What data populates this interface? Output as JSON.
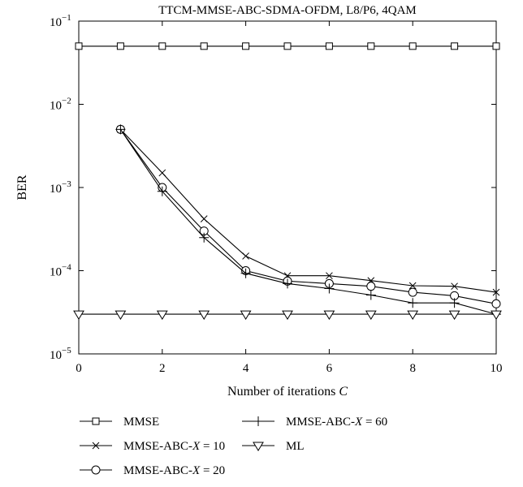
{
  "chart_data": {
    "type": "line",
    "title": "TTCM-MMSE-ABC-SDMA-OFDM, L8/P6, 4QAM",
    "xlabel": "Number of iterations",
    "xlabel_var": "C",
    "ylabel": "BER",
    "xlim": [
      0,
      10
    ],
    "ylim": [
      1e-05,
      0.1
    ],
    "yscale": "log",
    "xticks": [
      "0",
      "2",
      "4",
      "6",
      "8",
      "10"
    ],
    "yticks": [
      {
        "base": "10",
        "exp": "−1",
        "value": 0.1
      },
      {
        "base": "10",
        "exp": "−2",
        "value": 0.01
      },
      {
        "base": "10",
        "exp": "−3",
        "value": 0.001
      },
      {
        "base": "10",
        "exp": "−4",
        "value": 0.0001
      },
      {
        "base": "10",
        "exp": "−5",
        "value": 1e-05
      }
    ],
    "grid": false,
    "legend_position": "bottom",
    "series": [
      {
        "name": "MMSE",
        "label_parts": [
          "MMSE"
        ],
        "marker": "square",
        "x": [
          0,
          1,
          2,
          3,
          4,
          5,
          6,
          7,
          8,
          9,
          10
        ],
        "y": [
          0.05,
          0.05,
          0.05,
          0.05,
          0.05,
          0.05,
          0.05,
          0.05,
          0.05,
          0.05,
          0.05
        ]
      },
      {
        "name": "MMSE-ABC-X = 10",
        "label_parts": [
          "MMSE-ABC-",
          "X",
          " = 10"
        ],
        "marker": "x",
        "x": [
          1,
          2,
          3,
          4,
          5,
          6,
          7,
          8,
          9,
          10
        ],
        "y": [
          0.005,
          0.0015,
          0.00042,
          0.00015,
          8.7e-05,
          8.7e-05,
          7.6e-05,
          6.6e-05,
          6.5e-05,
          5.5e-05
        ]
      },
      {
        "name": "MMSE-ABC-X = 20",
        "label_parts": [
          "MMSE-ABC-",
          "X",
          " = 20"
        ],
        "marker": "circle",
        "x": [
          1,
          2,
          3,
          4,
          5,
          6,
          7,
          8,
          9,
          10
        ],
        "y": [
          0.005,
          0.001,
          0.0003,
          0.0001,
          7.5e-05,
          7e-05,
          6.5e-05,
          5.5e-05,
          5e-05,
          4e-05
        ]
      },
      {
        "name": "MMSE-ABC-X = 60",
        "label_parts": [
          "MMSE-ABC-",
          "X",
          " = 60"
        ],
        "marker": "plus",
        "x": [
          1,
          2,
          3,
          4,
          5,
          6,
          7,
          8,
          9,
          10
        ],
        "y": [
          0.005,
          0.0009,
          0.00025,
          9.3e-05,
          7e-05,
          6.1e-05,
          5.1e-05,
          4.1e-05,
          4.1e-05,
          3e-05
        ]
      },
      {
        "name": "ML",
        "label_parts": [
          "ML"
        ],
        "marker": "triangle-down",
        "x": [
          0,
          1,
          2,
          3,
          4,
          5,
          6,
          7,
          8,
          9,
          10
        ],
        "y": [
          3e-05,
          3e-05,
          3e-05,
          3e-05,
          3e-05,
          3e-05,
          3e-05,
          3e-05,
          3e-05,
          3e-05,
          3e-05
        ]
      }
    ]
  }
}
